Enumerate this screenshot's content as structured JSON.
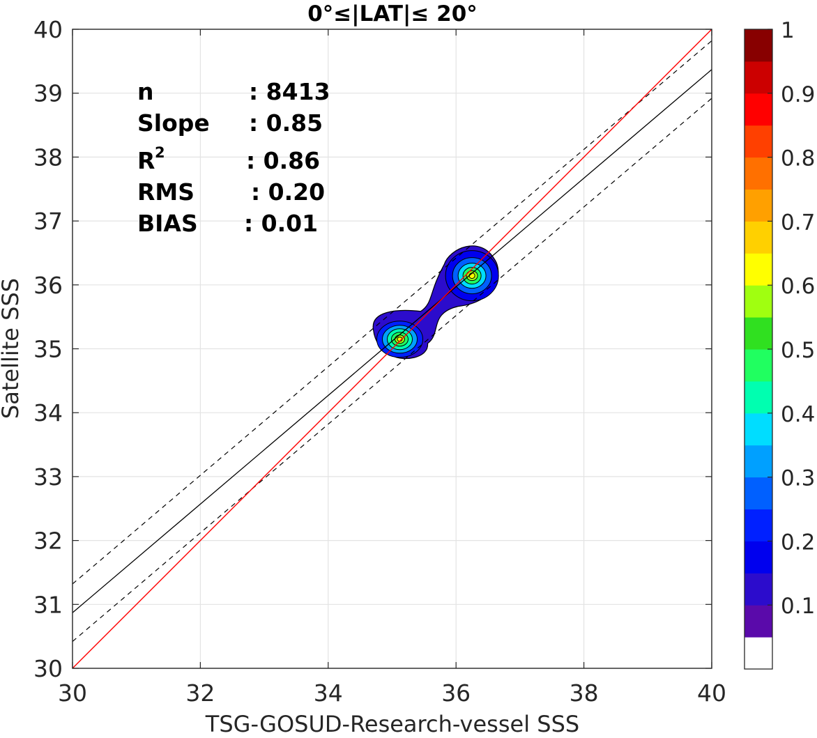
{
  "chart_data": {
    "type": "contour",
    "title": "0°≤|LAT|≤ 20°",
    "xlabel": "TSG-GOSUD-Research-vessel SSS",
    "ylabel": "Satellite SSS",
    "xlim": [
      30,
      40
    ],
    "ylim": [
      30,
      40
    ],
    "x_ticks": [
      "30",
      "32",
      "34",
      "36",
      "38",
      "40"
    ],
    "y_ticks": [
      "30",
      "31",
      "32",
      "33",
      "34",
      "35",
      "36",
      "37",
      "38",
      "39",
      "40"
    ],
    "grid": true,
    "stats": [
      {
        "label": "n",
        "value": ": 8413"
      },
      {
        "label": "Slope",
        "value": ": 0.85"
      },
      {
        "label": "R",
        "sup": "2",
        "value": ": 0.86"
      },
      {
        "label": "RMS",
        "value": ": 0.20"
      },
      {
        "label": "BIAS",
        "value": ": 0.01"
      }
    ],
    "lines": {
      "identity": {
        "slope": 1,
        "intercept": 0,
        "color": "#ff0000"
      },
      "fit": {
        "slope": 0.85,
        "x0": 30,
        "y0": 30.87,
        "color": "#000000"
      },
      "fit_band_offset": 0.45
    },
    "density_peaks": [
      {
        "x": 35.12,
        "y": 35.15
      },
      {
        "x": 36.25,
        "y": 36.1
      }
    ],
    "colorbar": {
      "ticks": [
        "0.1",
        "0.2",
        "0.3",
        "0.4",
        "0.5",
        "0.6",
        "0.7",
        "0.8",
        "0.9",
        "1"
      ],
      "colors": [
        "#ffffff",
        "#5a0aaa",
        "#2c0ccc",
        "#0000ee",
        "#0020ff",
        "#0060ff",
        "#00a0ff",
        "#00ddff",
        "#00ffb0",
        "#20ff60",
        "#30e020",
        "#a0ff10",
        "#ffff00",
        "#ffd000",
        "#ffa000",
        "#ff7000",
        "#ff4000",
        "#ff0000",
        "#cc0000",
        "#880000"
      ]
    }
  }
}
